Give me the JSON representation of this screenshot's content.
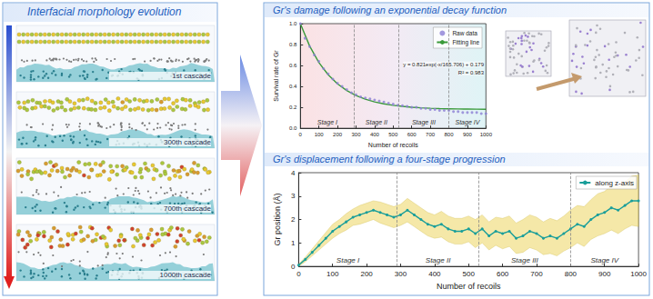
{
  "left_panel": {
    "title": "Interfacial morphology evolution",
    "snapshots": [
      "1st cascade",
      "300th cascade",
      "700th cascade",
      "1000th cascade"
    ]
  },
  "chart_data": [
    {
      "type": "line",
      "title": "Gr's damage following an exponential decay function",
      "xlabel": "Number of recoils",
      "ylabel": "Survival rate of Gr",
      "xlim": [
        0,
        1000
      ],
      "xticks": [
        0,
        100,
        200,
        300,
        400,
        500,
        600,
        700,
        800,
        900,
        1000
      ],
      "ylim": [
        0,
        1.0
      ],
      "yticks": [
        {
          "value": 0,
          "label": "0.0"
        },
        {
          "value": 0.2,
          "label": "0.2"
        },
        {
          "value": 0.4,
          "label": "0.4"
        },
        {
          "value": 0.6,
          "label": "0.6"
        },
        {
          "value": 0.8,
          "label": "0.8"
        },
        {
          "value": 1.0,
          "label": "1.0"
        }
      ],
      "grid": false,
      "legend": "upper right",
      "annotations": [
        "y = 0.821exp(-x/165.706) + 0.179",
        "R² = 0.983"
      ],
      "stages": {
        "labels": [
          "Stage I",
          "Stage II",
          "Stage III",
          "Stage IV"
        ],
        "bounds": [
          0,
          290,
          530,
          800,
          1000
        ]
      },
      "series": [
        {
          "name": "Raw data",
          "type": "scatter",
          "marker": "circle",
          "color": "#8c7fd6",
          "x": [
            0,
            25,
            50,
            75,
            100,
            125,
            150,
            175,
            200,
            225,
            250,
            275,
            300,
            325,
            350,
            375,
            400,
            425,
            450,
            475,
            500,
            525,
            550,
            575,
            600,
            625,
            650,
            675,
            700,
            725,
            750,
            775,
            800,
            825,
            850,
            875,
            900,
            925,
            950,
            975,
            1000
          ],
          "values": [
            1.0,
            0.86,
            0.78,
            0.7,
            0.64,
            0.57,
            0.52,
            0.47,
            0.43,
            0.4,
            0.37,
            0.34,
            0.32,
            0.3,
            0.29,
            0.28,
            0.27,
            0.26,
            0.25,
            0.24,
            0.23,
            0.22,
            0.215,
            0.21,
            0.2,
            0.2,
            0.19,
            0.19,
            0.18,
            0.18,
            0.17,
            0.17,
            0.17,
            0.16,
            0.16,
            0.15,
            0.15,
            0.15,
            0.15,
            0.14,
            0.14
          ]
        },
        {
          "name": "Fitting line",
          "type": "line",
          "marker": "none",
          "color": "#3a9a3a",
          "x": [
            0,
            50,
            100,
            150,
            200,
            250,
            300,
            350,
            400,
            450,
            500,
            550,
            600,
            650,
            700,
            750,
            800,
            850,
            900,
            950,
            1000
          ],
          "values": [
            1.0,
            0.786,
            0.628,
            0.511,
            0.424,
            0.36,
            0.313,
            0.278,
            0.252,
            0.233,
            0.219,
            0.209,
            0.201,
            0.195,
            0.191,
            0.188,
            0.186,
            0.184,
            0.183,
            0.182,
            0.181
          ]
        }
      ]
    },
    {
      "type": "line",
      "title": "Gr's displacement following a four-stage progression",
      "xlabel": "Number of recoils",
      "ylabel": "Gr position (Å)",
      "xlim": [
        0,
        1000
      ],
      "xticks": [
        0,
        100,
        200,
        300,
        400,
        500,
        600,
        700,
        800,
        900,
        1000
      ],
      "ylim": [
        0,
        4
      ],
      "yticks": [
        0,
        1,
        2,
        3,
        4
      ],
      "grid": false,
      "legend": "upper right",
      "stages": {
        "labels": [
          "Stage I",
          "Stage II",
          "Stage III",
          "Stage IV"
        ],
        "bounds": [
          0,
          290,
          530,
          800,
          1000
        ]
      },
      "x": [
        0,
        20,
        40,
        60,
        80,
        100,
        120,
        140,
        160,
        180,
        200,
        220,
        240,
        260,
        280,
        300,
        320,
        340,
        360,
        380,
        400,
        420,
        440,
        460,
        480,
        500,
        520,
        540,
        560,
        580,
        600,
        620,
        640,
        660,
        680,
        700,
        720,
        740,
        760,
        780,
        800,
        820,
        840,
        860,
        880,
        900,
        920,
        940,
        960,
        980,
        1000
      ],
      "series": [
        {
          "name": "along z-axis",
          "marker": "circle",
          "color": "#1a9e9a",
          "values": [
            0.05,
            0.3,
            0.6,
            0.9,
            1.2,
            1.5,
            1.7,
            1.9,
            2.1,
            2.2,
            2.3,
            2.4,
            2.3,
            2.2,
            2.1,
            2.2,
            2.4,
            2.2,
            2.0,
            1.8,
            1.7,
            1.8,
            1.6,
            1.5,
            1.5,
            1.6,
            1.4,
            1.6,
            1.3,
            1.5,
            1.4,
            1.5,
            1.2,
            1.3,
            1.5,
            1.4,
            1.2,
            1.3,
            1.2,
            1.4,
            1.6,
            1.8,
            1.7,
            2.0,
            2.2,
            2.3,
            2.5,
            2.4,
            2.6,
            2.8,
            2.8
          ],
          "error": [
            0.05,
            0.1,
            0.15,
            0.2,
            0.25,
            0.3,
            0.3,
            0.35,
            0.35,
            0.4,
            0.4,
            0.4,
            0.45,
            0.45,
            0.45,
            0.45,
            0.5,
            0.5,
            0.5,
            0.5,
            0.5,
            0.55,
            0.55,
            0.55,
            0.55,
            0.55,
            0.6,
            0.6,
            0.6,
            0.6,
            0.65,
            0.65,
            0.65,
            0.7,
            0.7,
            0.7,
            0.7,
            0.75,
            0.75,
            0.75,
            0.8,
            0.8,
            0.85,
            0.85,
            0.9,
            0.9,
            0.95,
            1.0,
            1.0,
            1.05,
            1.1
          ]
        }
      ]
    }
  ]
}
